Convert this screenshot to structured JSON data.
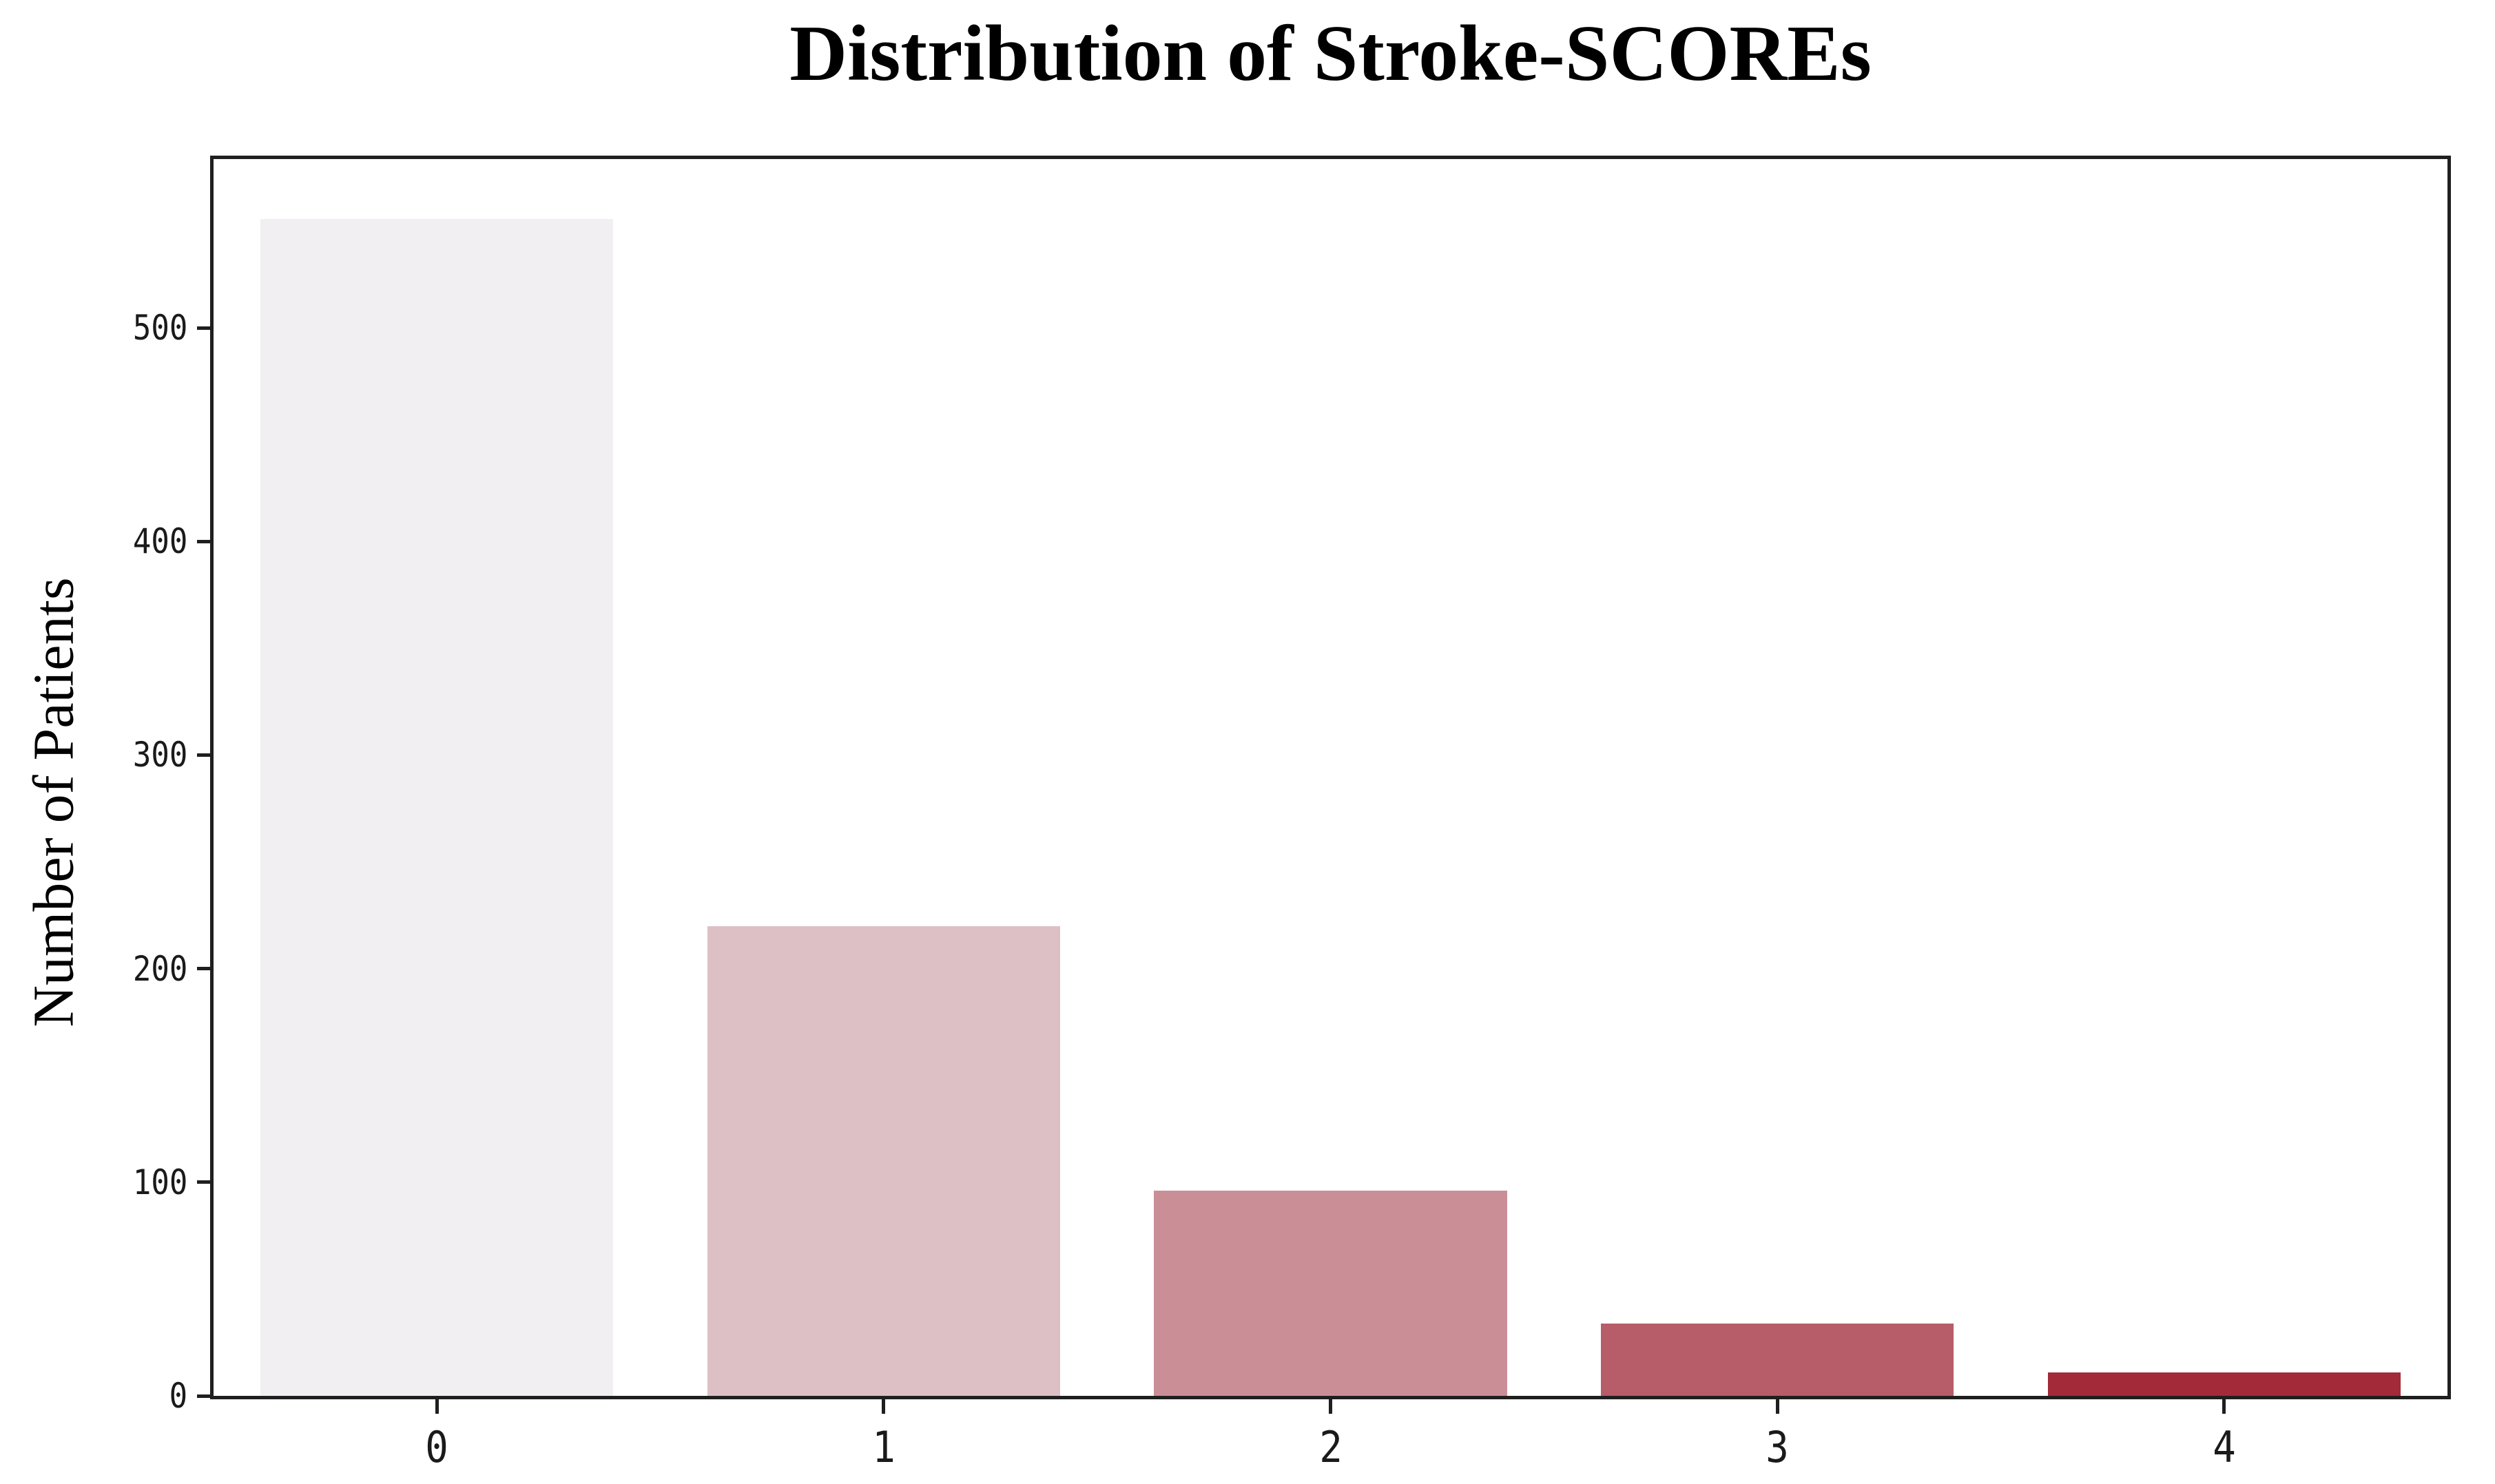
{
  "chart_data": {
    "type": "bar",
    "title": "Distribution of Stroke-SCOREs",
    "xlabel": "",
    "ylabel": "Number of Patients",
    "categories": [
      "0",
      "1",
      "2",
      "3",
      "4"
    ],
    "values": [
      551,
      220,
      96,
      34,
      11
    ],
    "bar_colors": [
      "#f1eff1",
      "#ddc0c5",
      "#ca8e97",
      "#b75c69",
      "#a32a38"
    ],
    "ylim": [
      0,
      579
    ],
    "ytick_values": [
      0,
      100,
      200,
      300,
      400,
      500
    ],
    "ytick_labels": [
      "0",
      "100",
      "200",
      "300",
      "400",
      "500"
    ],
    "bar_width_fraction": 0.79,
    "axis_color": "#1f1f1f",
    "plot_background": "#ffffff",
    "grid": false,
    "legend_position": "none"
  }
}
